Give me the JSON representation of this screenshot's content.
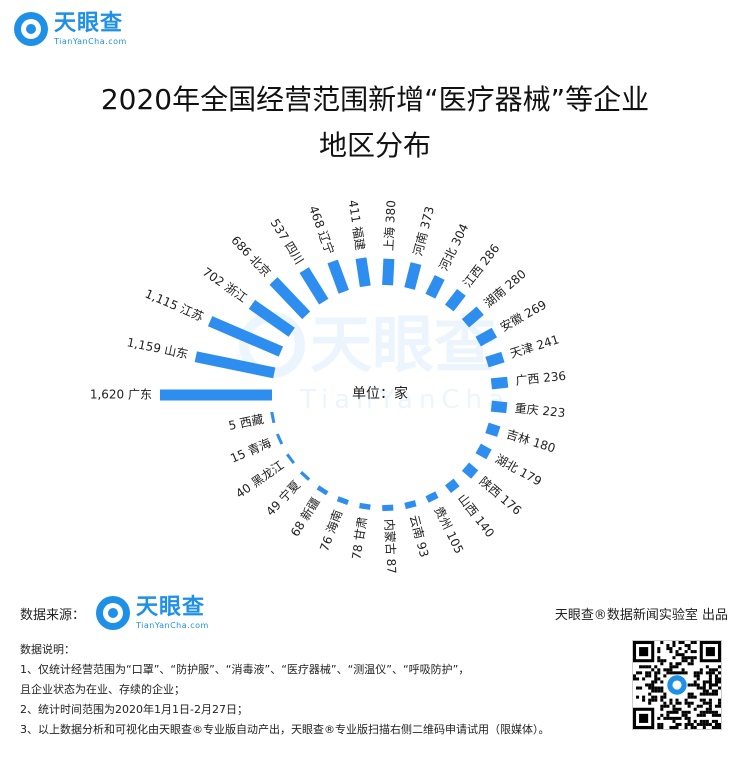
{
  "brand": {
    "name_cn": "天眼查",
    "name_en": "TianYanCha.com",
    "color": "#1e90e8"
  },
  "watermark": {
    "name_cn": "天眼查",
    "name_en": "TianYanCha"
  },
  "title_line1": "2020年全国经营范围新增“医疗器械”等企业",
  "title_line2": "地区分布",
  "footer": {
    "source_label": "数据来源：",
    "credit": "天眼查®数据新闻实验室 出品"
  },
  "notes": {
    "heading": "数据说明：",
    "line1": "1、仅统计经营范围为“口罩”、“防护服”、“消毒液”、“医疗器械”、“测温仪”、“呼吸防护”，",
    "line2": "且企业状态为在业、存续的企业；",
    "line3": "2、统计时间范围为2020年1月1日-2月27日；",
    "line4": "3、以上数据分析和可视化由天眼查®专业版自动产出，天眼查®专业版扫描右侧二维码申请试用（限媒体）。"
  },
  "chart_data": {
    "type": "bar",
    "subtype": "radial",
    "center_label": "单位：家",
    "unit": "家",
    "bar_color": "#2e8ef0",
    "categories": [
      "广东",
      "山东",
      "江苏",
      "浙江",
      "北京",
      "四川",
      "辽宁",
      "福建",
      "上海",
      "河南",
      "河北",
      "江西",
      "湖南",
      "安徽",
      "天津",
      "广西",
      "重庆",
      "吉林",
      "湖北",
      "陕西",
      "山西",
      "贵州",
      "云南",
      "内蒙古",
      "甘肃",
      "海南",
      "新疆",
      "宁夏",
      "黑龙江",
      "青海",
      "西藏"
    ],
    "values": [
      1620,
      1159,
      1115,
      702,
      686,
      537,
      468,
      411,
      380,
      373,
      304,
      286,
      280,
      269,
      241,
      236,
      223,
      180,
      179,
      176,
      140,
      105,
      93,
      87,
      78,
      76,
      68,
      49,
      40,
      15,
      5
    ],
    "value_labels": [
      "1,620",
      "1,159",
      "1,115",
      "702",
      "686",
      "537",
      "468",
      "411",
      "380",
      "373",
      "304",
      "286",
      "280",
      "269",
      "241",
      "236",
      "223",
      "180",
      "179",
      "176",
      "140",
      "105",
      "93",
      "87",
      "78",
      "76",
      "68",
      "49",
      "40",
      "15",
      "5"
    ]
  }
}
